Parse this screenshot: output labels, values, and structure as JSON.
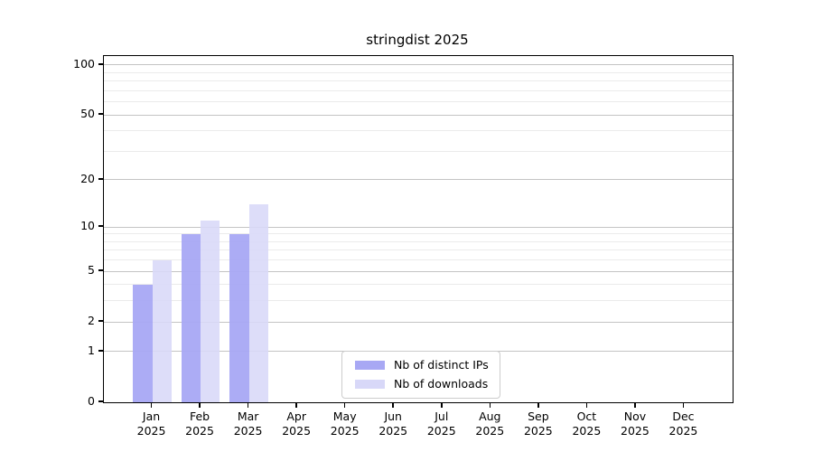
{
  "chart_data": {
    "type": "bar",
    "title": "stringdist 2025",
    "x_categories": [
      "Jan",
      "Feb",
      "Mar",
      "Apr",
      "May",
      "Jun",
      "Jul",
      "Aug",
      "Sep",
      "Oct",
      "Nov",
      "Dec"
    ],
    "x_year_label": "2025",
    "series": [
      {
        "name": "Nb of distinct IPs",
        "color": "#a8a8f4",
        "fill_alpha": 0.95,
        "values": [
          4,
          9,
          9,
          0,
          0,
          0,
          0,
          0,
          0,
          0,
          0,
          0
        ]
      },
      {
        "name": "Nb of downloads",
        "color": "#d8d8f8",
        "fill_alpha": 0.88,
        "values": [
          6,
          11,
          14,
          0,
          0,
          0,
          0,
          0,
          0,
          0,
          0,
          0
        ]
      }
    ],
    "y_axis": {
      "scale": "log1p",
      "major_ticks": [
        0,
        1,
        2,
        5,
        10,
        20,
        50,
        100
      ],
      "minor_ticks": [
        3,
        4,
        6,
        7,
        8,
        9,
        30,
        40,
        60,
        70,
        80,
        90
      ],
      "range": [
        0,
        113
      ]
    },
    "legend": {
      "position": "lower-center",
      "entries": [
        "Nb of distinct IPs",
        "Nb of downloads"
      ]
    },
    "grid": "horizontal-major-and-minor",
    "colors": {
      "grid_major": "#c4c4c4",
      "grid_minor": "#ebebeb",
      "spine": "#000000",
      "background": "#ffffff"
    }
  }
}
